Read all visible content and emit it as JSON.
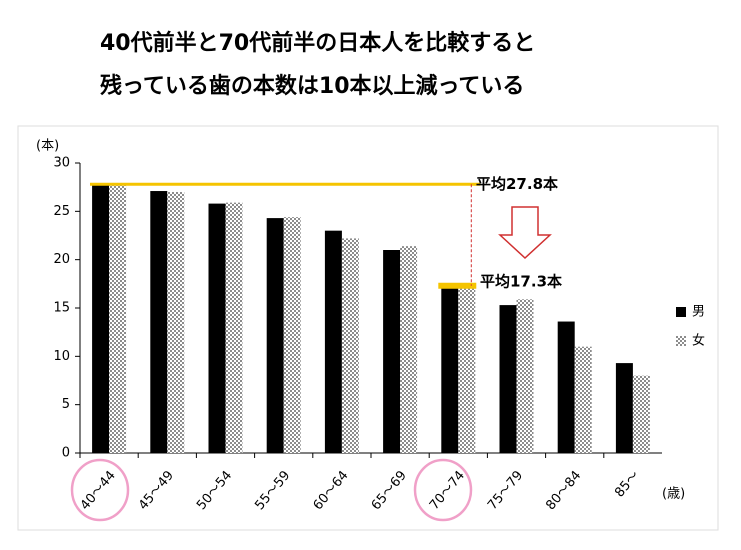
{
  "chart_data": {
    "type": "bar",
    "title": [
      "40代前半と70代前半の日本人を比較すると",
      "残っている歯の本数は10本以上減っている"
    ],
    "y_label": "(本)",
    "x_label": "(歳)",
    "categories": [
      "40～44",
      "45～49",
      "50～54",
      "55～59",
      "60～64",
      "65～69",
      "70～74",
      "75～79",
      "80～84",
      "85～"
    ],
    "series": [
      {
        "name": "男",
        "color": "#000000",
        "values": [
          27.7,
          27.1,
          25.8,
          24.3,
          23.0,
          21.0,
          17.4,
          15.3,
          13.6,
          9.3
        ]
      },
      {
        "name": "女",
        "color": "#8c8c8c",
        "values": [
          27.8,
          27.0,
          25.9,
          24.4,
          22.2,
          21.4,
          17.2,
          15.9,
          11.0,
          8.0
        ]
      }
    ],
    "annotations": [
      {
        "text": "平均27.8本",
        "value": 27.8
      },
      {
        "text": "平均17.3本",
        "value": 17.3
      }
    ],
    "ylim": [
      0,
      30
    ],
    "yticks": [
      0,
      5,
      10,
      15,
      20,
      25,
      30
    ],
    "legend": "right"
  }
}
